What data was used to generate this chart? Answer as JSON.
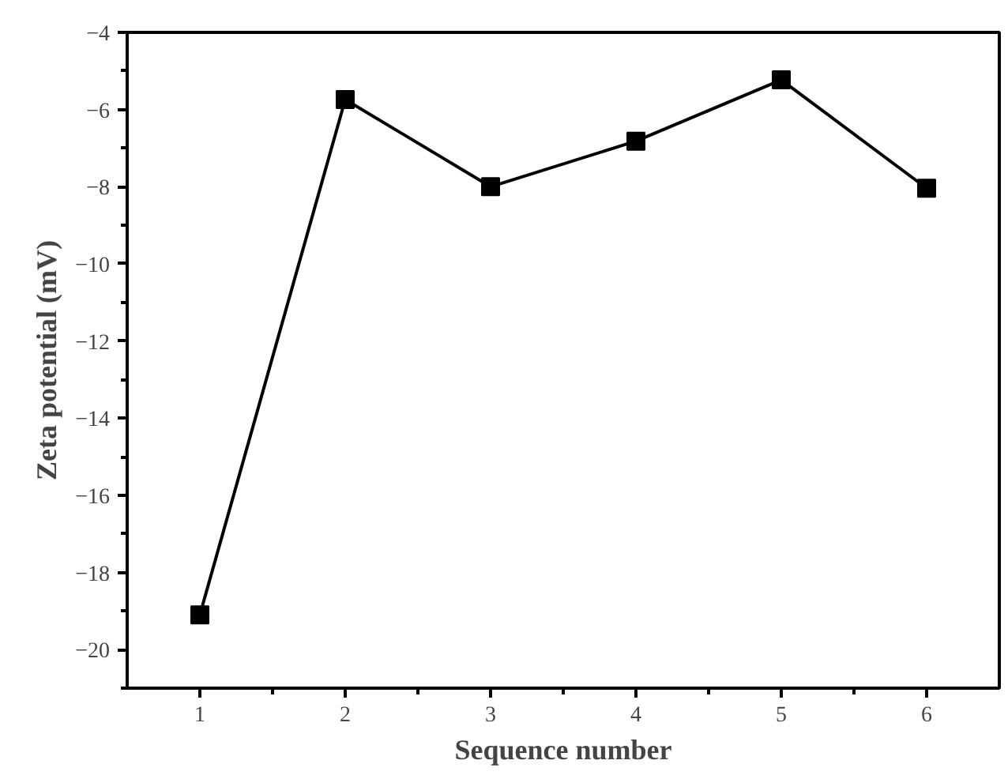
{
  "chart_data": {
    "type": "line",
    "xlabel": "Sequence number",
    "ylabel": "Zeta potential (mV)",
    "x": [
      1,
      2,
      3,
      4,
      5,
      6
    ],
    "series": [
      {
        "color": "#000000",
        "values": [
          -19.1,
          -5.74,
          -8.0,
          -6.82,
          -5.23,
          -8.04
        ]
      }
    ],
    "xlim": [
      0.5,
      6.5
    ],
    "xticks": [
      1,
      2,
      3,
      4,
      5,
      6
    ],
    "ylim": [
      -21,
      -4
    ],
    "yticks": [
      -20,
      -18,
      -16,
      -14,
      -12,
      -10,
      -8,
      -6,
      -4
    ],
    "grid": false,
    "marker": "square",
    "line_style": "solid"
  }
}
